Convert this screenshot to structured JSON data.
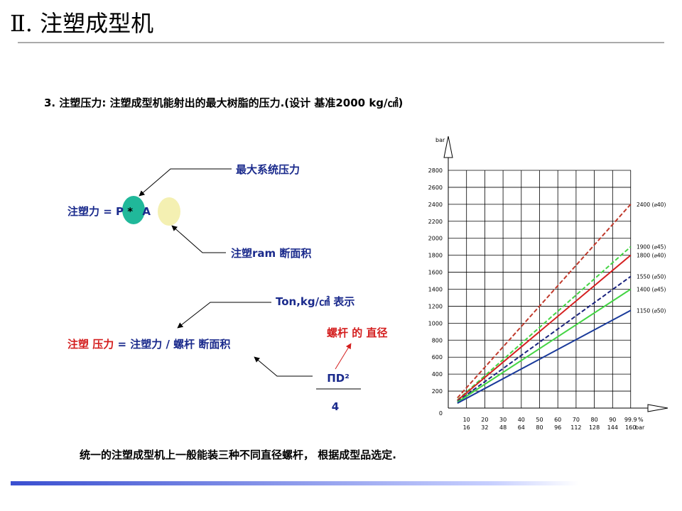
{
  "header": {
    "title": "Ⅱ. 注塑成型机"
  },
  "subtitle": "3. 注塑压力: 注塑成型机能射出的最大树脂的压力.(设计  基准2000 kg/㎠)",
  "diagram": {
    "max_pressure": "最大系统压力",
    "formula1": {
      "left": "注塑力 = ",
      "p": "P",
      "times": " * ",
      "a": "A"
    },
    "ram_area": "注塑ram 断面积",
    "unit_note": "Ton,kg/㎠ 表示",
    "screw_diameter": "螺杆 的 直径",
    "formula2": {
      "left": "注塑 压力",
      "right": " = 注塑力 / 螺杆 断面积"
    },
    "numerator": "ΠD²",
    "denominator": "4"
  },
  "footer": "统一的注塑成型机上一般能装三种不同直径螺杆，  根据成型品选定.",
  "chart_data": {
    "type": "line",
    "y_label": "bar",
    "x_unit": "%",
    "x2_unit": "bar",
    "x": [
      5,
      99.9
    ],
    "xlim": [
      0,
      100
    ],
    "xticks": [
      10,
      20,
      30,
      40,
      50,
      60,
      70,
      80,
      90,
      99.9
    ],
    "x2ticks": [
      16,
      32,
      48,
      64,
      80,
      96,
      112,
      128,
      144,
      160
    ],
    "ylim": [
      0,
      2800
    ],
    "yticks": [
      0,
      200,
      400,
      600,
      800,
      1000,
      1200,
      1400,
      1600,
      1800,
      2000,
      2200,
      2400,
      2600,
      2800
    ],
    "grid": true,
    "series": [
      {
        "name": "2400 (⌀40)",
        "color": "#c0392b",
        "dashed": true,
        "values": [
          120,
          2400
        ]
      },
      {
        "name": "1900 (⌀45)",
        "color": "#44d444",
        "dashed": true,
        "values": [
          95,
          1900
        ]
      },
      {
        "name": "1800 (⌀40)",
        "color": "#d42020",
        "dashed": false,
        "values": [
          90,
          1800
        ]
      },
      {
        "name": "1550 (⌀50)",
        "color": "#1a237e",
        "dashed": true,
        "values": [
          78,
          1550
        ]
      },
      {
        "name": "1400 (⌀45)",
        "color": "#44d444",
        "dashed": false,
        "values": [
          70,
          1400
        ]
      },
      {
        "name": "1150 (⌀50)",
        "color": "#1a3a9a",
        "dashed": false,
        "values": [
          58,
          1150
        ]
      }
    ]
  }
}
